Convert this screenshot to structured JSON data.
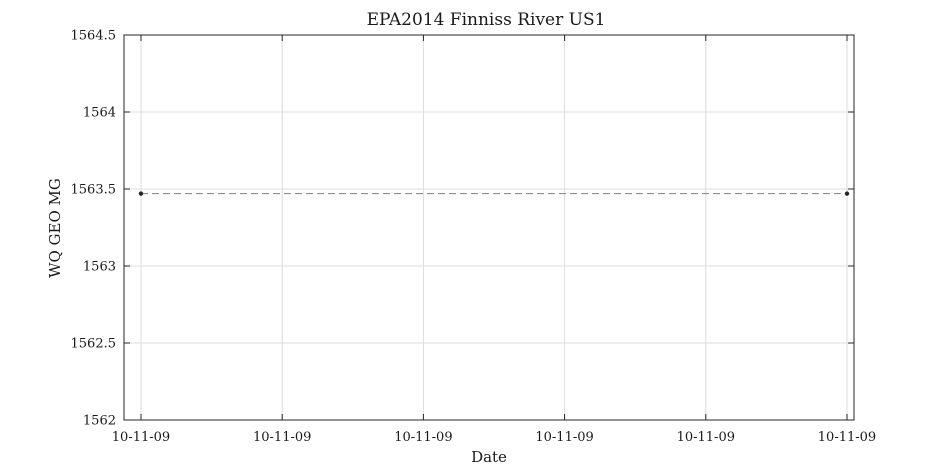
{
  "chart_data": {
    "type": "line",
    "title": "EPA2014 Finniss River US1",
    "xlabel": "Date",
    "ylabel": "WQ GEO MG",
    "x_tick_labels": [
      "10-11-09",
      "10-11-09",
      "10-11-09",
      "10-11-09",
      "10-11-09",
      "10-11-09"
    ],
    "y_ticks": [
      1562,
      1562.5,
      1563,
      1563.5,
      1564,
      1564.5
    ],
    "y_tick_labels": [
      "1562",
      "1562.5",
      "1563",
      "1563.5",
      "1564",
      "1564.5"
    ],
    "ylim": [
      1562,
      1564.5
    ],
    "grid": true,
    "series": [
      {
        "points": [
          {
            "x": "10-11-09",
            "y": 1563.47
          },
          {
            "x": "10-11-09",
            "y": 1563.47
          }
        ],
        "line_style": "dashed",
        "marker": "dot",
        "color": "#808080",
        "marker_color": "#262626"
      }
    ]
  }
}
